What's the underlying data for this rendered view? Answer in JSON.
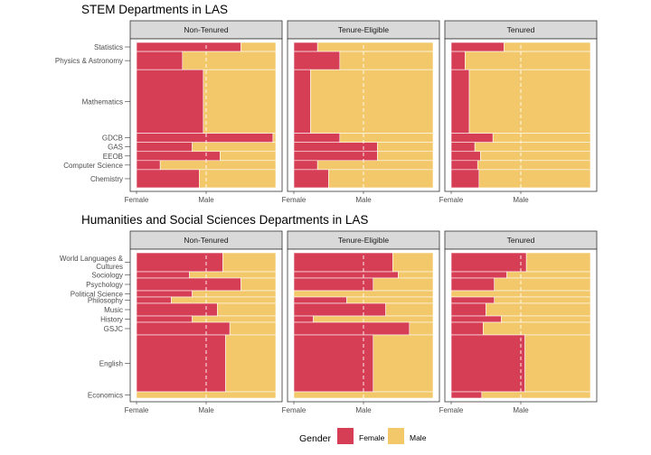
{
  "colors": {
    "female": "#D63E56",
    "male": "#F2C86A",
    "strip_bg": "#D9D9D9",
    "refline": "#FFFFFF"
  },
  "legend": {
    "title": "Gender",
    "items": [
      {
        "label": "Female",
        "key": "female"
      },
      {
        "label": "Male",
        "key": "male"
      }
    ]
  },
  "chart_data": [
    {
      "type": "bar",
      "title": "STEM Departments in LAS",
      "facets": [
        "Non-Tenured",
        "Tenure-Eligible",
        "Tenured"
      ],
      "categories": [
        "Statistics",
        "Physics & Astronomy",
        "Mathematics",
        "GDCB",
        "GAS",
        "EEOB",
        "Computer Science",
        "Chemistry"
      ],
      "category_weights": [
        1,
        2,
        7,
        1,
        1,
        1,
        1,
        2
      ],
      "series": [
        {
          "name": "Female",
          "values": {
            "Non-Tenured": [
              0.75,
              0.33,
              0.48,
              0.98,
              0.4,
              0.6,
              0.17,
              0.45
            ],
            "Tenure-Eligible": [
              0.17,
              0.33,
              0.12,
              0.33,
              0.6,
              0.6,
              0.17,
              0.25
            ],
            "Tenured": [
              0.38,
              0.1,
              0.13,
              0.3,
              0.17,
              0.21,
              0.19,
              0.2
            ]
          }
        }
      ],
      "x_ticks": [
        "Female",
        "Male"
      ],
      "x_tick_positions": [
        0,
        0.5
      ],
      "refline_at": 0.5
    },
    {
      "type": "bar",
      "title": "Humanities and Social Sciences Departments in LAS",
      "facets": [
        "Non-Tenured",
        "Tenure-Eligible",
        "Tenured"
      ],
      "categories": [
        "World Languages & Cultures",
        "Sociology",
        "Psychology",
        "Political Science",
        "Philosophy",
        "Music",
        "History",
        "GSJC",
        "English",
        "Economics"
      ],
      "category_labels": [
        "World Languages &\nCultures",
        "Sociology",
        "Psychology",
        "Political Science",
        "Philosophy",
        "Music",
        "History",
        "GSJC",
        "English",
        "Economics"
      ],
      "category_weights": [
        3,
        1,
        2,
        1,
        1,
        2,
        1,
        2,
        9,
        1
      ],
      "series": [
        {
          "name": "Female",
          "values": {
            "Non-Tenured": [
              0.62,
              0.38,
              0.75,
              0.4,
              0.25,
              0.58,
              0.4,
              0.67,
              0.64,
              0.0
            ],
            "Tenure-Eligible": [
              0.71,
              0.75,
              0.57,
              0.0,
              0.38,
              0.66,
              0.14,
              0.83,
              0.57,
              0.0
            ],
            "Tenured": [
              0.54,
              0.4,
              0.31,
              0.0,
              0.31,
              0.25,
              0.36,
              0.23,
              0.53,
              0.22
            ]
          }
        }
      ],
      "x_ticks": [
        "Female",
        "Male"
      ],
      "x_tick_positions": [
        0,
        0.5
      ],
      "refline_at": 0.5
    }
  ]
}
